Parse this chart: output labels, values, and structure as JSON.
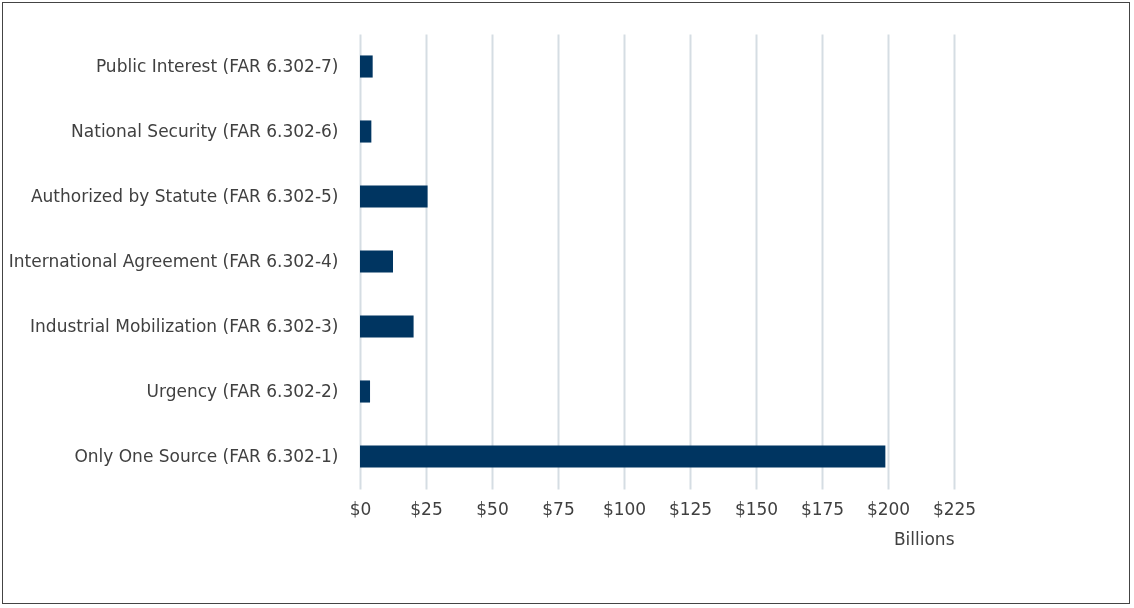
{
  "chart_data": {
    "type": "bar",
    "orientation": "horizontal",
    "categories": [
      "Public Interest (FAR 6.302-7)",
      "National Security (FAR 6.302-6)",
      "Authorized by Statute (FAR 6.302-5)",
      "International Agreement (FAR 6.302-4)",
      "Industrial Mobilization (FAR 6.302-3)",
      "Urgency (FAR 6.302-2)",
      "Only One Source (FAR 6.302-1)"
    ],
    "values": [
      4.8,
      4.3,
      25.6,
      12.5,
      20.3,
      3.8,
      199
    ],
    "color": "#003561",
    "xlabel": "Billions",
    "xlim": [
      0,
      225
    ],
    "xticks": [
      {
        "value": 0,
        "label": "$0"
      },
      {
        "value": 25,
        "label": "$25"
      },
      {
        "value": 50,
        "label": "$50"
      },
      {
        "value": 75,
        "label": "$75"
      },
      {
        "value": 100,
        "label": "$100"
      },
      {
        "value": 125,
        "label": "$125"
      },
      {
        "value": 150,
        "label": "$150"
      },
      {
        "value": 175,
        "label": "$175"
      },
      {
        "value": 200,
        "label": "$200"
      },
      {
        "value": 225,
        "label": "$225"
      }
    ],
    "grid": "x"
  }
}
